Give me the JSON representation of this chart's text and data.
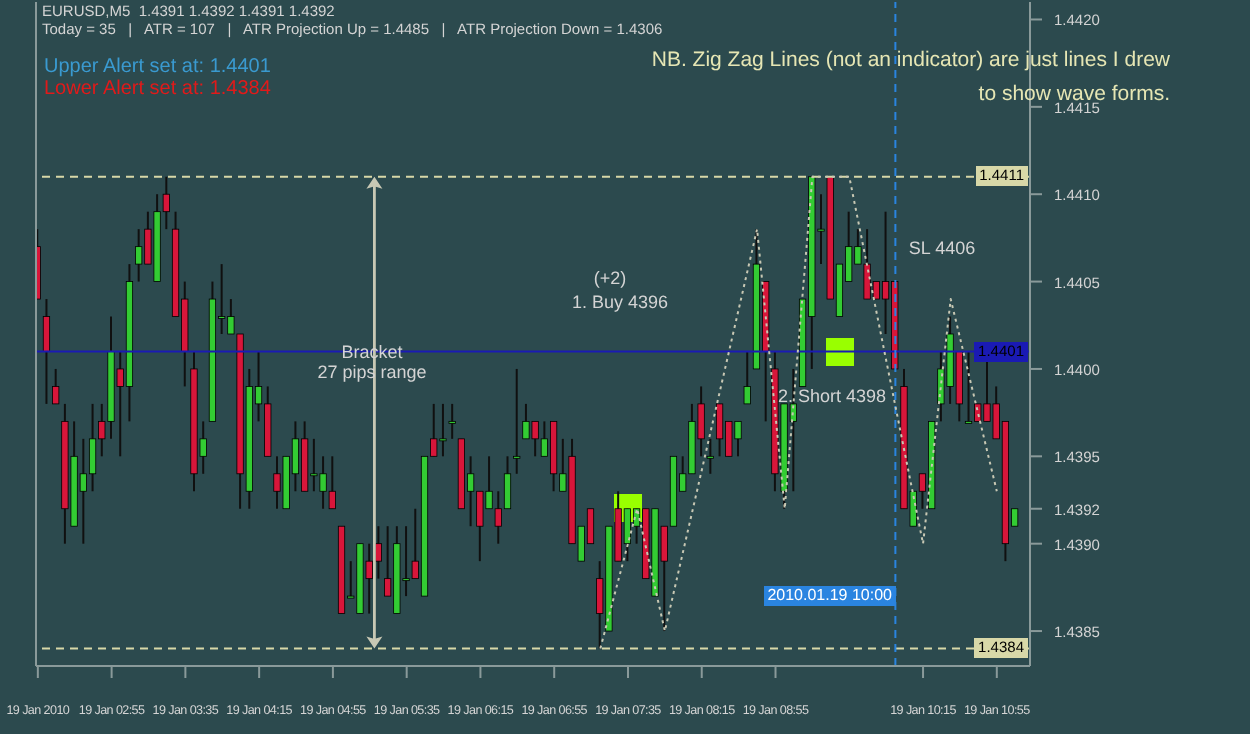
{
  "chart_data": {
    "type": "candlestick",
    "title": "EURUSD,M5  1.4391 1.4392 1.4391 1.4392",
    "subtitle": "Today = 35   |   ATR = 107   |   ATR Projection Up = 1.4485   |   ATR Projection Down = 1.4306",
    "annotations": [
      "NB. Zig Zag Lines (not an indicator) are just lines I drew to show wave forms.",
      "Upper Alert set at: 1.4401",
      "Lower Alert set at: 1.4384",
      "Bracket",
      "27 pips range",
      "(+2)",
      "1. Buy  4396",
      "2. Short 4398",
      "SL 4406"
    ],
    "x": [
      "2010-01-19T02:15",
      "2010-01-19T02:20",
      "2010-01-19T02:25",
      "2010-01-19T02:30",
      "2010-01-19T02:35",
      "2010-01-19T02:40",
      "2010-01-19T02:45",
      "2010-01-19T02:50",
      "2010-01-19T02:55",
      "2010-01-19T03:00",
      "2010-01-19T03:05",
      "2010-01-19T03:10",
      "2010-01-19T03:15",
      "2010-01-19T03:20",
      "2010-01-19T03:25",
      "2010-01-19T03:30",
      "2010-01-19T03:35",
      "2010-01-19T03:40",
      "2010-01-19T03:45",
      "2010-01-19T03:50",
      "2010-01-19T03:55",
      "2010-01-19T04:00",
      "2010-01-19T04:05",
      "2010-01-19T04:10",
      "2010-01-19T04:15",
      "2010-01-19T04:20",
      "2010-01-19T04:25",
      "2010-01-19T04:30",
      "2010-01-19T04:35",
      "2010-01-19T04:40",
      "2010-01-19T04:45",
      "2010-01-19T04:50",
      "2010-01-19T04:55",
      "2010-01-19T05:00",
      "2010-01-19T05:05",
      "2010-01-19T05:10",
      "2010-01-19T05:15",
      "2010-01-19T05:20",
      "2010-01-19T05:25",
      "2010-01-19T05:30",
      "2010-01-19T05:35",
      "2010-01-19T05:40",
      "2010-01-19T05:45",
      "2010-01-19T05:50",
      "2010-01-19T05:55",
      "2010-01-19T06:00",
      "2010-01-19T06:05",
      "2010-01-19T06:10",
      "2010-01-19T06:15",
      "2010-01-19T06:20",
      "2010-01-19T06:25",
      "2010-01-19T06:30",
      "2010-01-19T06:35",
      "2010-01-19T06:40",
      "2010-01-19T06:45",
      "2010-01-19T06:50",
      "2010-01-19T06:55",
      "2010-01-19T07:00",
      "2010-01-19T07:05",
      "2010-01-19T07:10",
      "2010-01-19T07:15",
      "2010-01-19T07:20",
      "2010-01-19T07:25",
      "2010-01-19T07:30",
      "2010-01-19T07:35",
      "2010-01-19T07:40",
      "2010-01-19T07:45",
      "2010-01-19T07:50",
      "2010-01-19T07:55",
      "2010-01-19T08:00",
      "2010-01-19T08:05",
      "2010-01-19T08:10",
      "2010-01-19T08:15",
      "2010-01-19T08:20",
      "2010-01-19T08:25",
      "2010-01-19T08:30",
      "2010-01-19T08:35",
      "2010-01-19T08:40",
      "2010-01-19T08:45",
      "2010-01-19T08:50",
      "2010-01-19T08:55",
      "2010-01-19T09:00",
      "2010-01-19T09:05",
      "2010-01-19T09:10",
      "2010-01-19T09:15",
      "2010-01-19T09:20",
      "2010-01-19T09:25",
      "2010-01-19T09:30",
      "2010-01-19T09:35",
      "2010-01-19T09:40",
      "2010-01-19T09:45",
      "2010-01-19T09:50",
      "2010-01-19T09:55",
      "2010-01-19T10:00",
      "2010-01-19T10:05",
      "2010-01-19T10:10",
      "2010-01-19T10:15",
      "2010-01-19T10:20",
      "2010-01-19T10:25",
      "2010-01-19T10:30",
      "2010-01-19T10:35",
      "2010-01-19T10:40",
      "2010-01-19T10:45",
      "2010-01-19T10:50",
      "2010-01-19T10:55",
      "2010-01-19T11:00",
      "2010-01-19T11:05"
    ],
    "ohlc": [
      [
        1.4407,
        1.4408,
        1.4404,
        1.4404
      ],
      [
        1.4403,
        1.4404,
        1.4398,
        1.4401
      ],
      [
        1.4399,
        1.44,
        1.4398,
        1.4398
      ],
      [
        1.4397,
        1.4398,
        1.439,
        1.4392
      ],
      [
        1.4391,
        1.4397,
        1.4391,
        1.4395
      ],
      [
        1.4393,
        1.4396,
        1.439,
        1.4394
      ],
      [
        1.4394,
        1.4398,
        1.4393,
        1.4396
      ],
      [
        1.4397,
        1.4398,
        1.4395,
        1.4396
      ],
      [
        1.4397,
        1.4403,
        1.4396,
        1.4401
      ],
      [
        1.44,
        1.4401,
        1.4395,
        1.4399
      ],
      [
        1.4399,
        1.4406,
        1.4397,
        1.4405
      ],
      [
        1.4406,
        1.4408,
        1.4405,
        1.4407
      ],
      [
        1.4408,
        1.4409,
        1.4406,
        1.4406
      ],
      [
        1.4405,
        1.441,
        1.4405,
        1.4409
      ],
      [
        1.441,
        1.4411,
        1.4408,
        1.4409
      ],
      [
        1.4408,
        1.4409,
        1.4403,
        1.4403
      ],
      [
        1.4404,
        1.4405,
        1.4399,
        1.4401
      ],
      [
        1.44,
        1.4401,
        1.4393,
        1.4394
      ],
      [
        1.4395,
        1.4397,
        1.4394,
        1.4396
      ],
      [
        1.4397,
        1.4405,
        1.4397,
        1.4404
      ],
      [
        1.4403,
        1.4406,
        1.4402,
        1.4403
      ],
      [
        1.4402,
        1.4404,
        1.4402,
        1.4403
      ],
      [
        1.4402,
        1.4402,
        1.4392,
        1.4394
      ],
      [
        1.4393,
        1.44,
        1.4392,
        1.4399
      ],
      [
        1.4398,
        1.4401,
        1.4397,
        1.4399
      ],
      [
        1.4398,
        1.4399,
        1.4395,
        1.4395
      ],
      [
        1.4394,
        1.4395,
        1.4392,
        1.4393
      ],
      [
        1.4392,
        1.4395,
        1.4392,
        1.4395
      ],
      [
        1.4394,
        1.4397,
        1.4393,
        1.4396
      ],
      [
        1.4396,
        1.4397,
        1.4393,
        1.4393
      ],
      [
        1.4394,
        1.4396,
        1.4393,
        1.4394
      ],
      [
        1.4393,
        1.4395,
        1.4392,
        1.4394
      ],
      [
        1.4393,
        1.4395,
        1.4392,
        1.4392
      ],
      [
        1.4391,
        1.4391,
        1.4386,
        1.4386
      ],
      [
        1.4387,
        1.4389,
        1.4387,
        1.4387
      ],
      [
        1.4386,
        1.439,
        1.4386,
        1.439
      ],
      [
        1.4389,
        1.439,
        1.4386,
        1.4388
      ],
      [
        1.439,
        1.4391,
        1.4388,
        1.4389
      ],
      [
        1.4388,
        1.4391,
        1.4387,
        1.4387
      ],
      [
        1.4386,
        1.4391,
        1.4386,
        1.439
      ],
      [
        1.4388,
        1.4391,
        1.4387,
        1.4388
      ],
      [
        1.4389,
        1.4392,
        1.4388,
        1.4388
      ],
      [
        1.4387,
        1.4395,
        1.4387,
        1.4395
      ],
      [
        1.4396,
        1.4398,
        1.4395,
        1.4395
      ],
      [
        1.4396,
        1.4398,
        1.4395,
        1.4396
      ],
      [
        1.4397,
        1.4398,
        1.4396,
        1.4397
      ],
      [
        1.4396,
        1.4396,
        1.4392,
        1.4392
      ],
      [
        1.4393,
        1.4395,
        1.4391,
        1.4394
      ],
      [
        1.4393,
        1.4393,
        1.4389,
        1.4391
      ],
      [
        1.4392,
        1.4395,
        1.4392,
        1.4393
      ],
      [
        1.4392,
        1.4393,
        1.439,
        1.4391
      ],
      [
        1.4392,
        1.4395,
        1.4392,
        1.4394
      ],
      [
        1.4395,
        1.44,
        1.4394,
        1.4395
      ],
      [
        1.4396,
        1.4398,
        1.4396,
        1.4397
      ],
      [
        1.4397,
        1.4397,
        1.4395,
        1.4396
      ],
      [
        1.4395,
        1.4397,
        1.4395,
        1.4396
      ],
      [
        1.4397,
        1.4397,
        1.4393,
        1.4394
      ],
      [
        1.4393,
        1.4396,
        1.4393,
        1.4394
      ],
      [
        1.4395,
        1.4396,
        1.439,
        1.439
      ],
      [
        1.4389,
        1.4391,
        1.4389,
        1.4391
      ],
      [
        1.4392,
        1.4392,
        1.439,
        1.439
      ],
      [
        1.4388,
        1.4389,
        1.4384,
        1.4386
      ],
      [
        1.4385,
        1.4391,
        1.4385,
        1.4391
      ],
      [
        1.4392,
        1.4393,
        1.4389,
        1.4389
      ],
      [
        1.439,
        1.4392,
        1.4389,
        1.4392
      ],
      [
        1.4391,
        1.4392,
        1.439,
        1.4392
      ],
      [
        1.4392,
        1.4392,
        1.4388,
        1.4388
      ],
      [
        1.4387,
        1.4392,
        1.4387,
        1.4392
      ],
      [
        1.4391,
        1.4391,
        1.4385,
        1.4389
      ],
      [
        1.4391,
        1.4395,
        1.4391,
        1.4395
      ],
      [
        1.4393,
        1.4395,
        1.4393,
        1.4394
      ],
      [
        1.4394,
        1.4398,
        1.4394,
        1.4397
      ],
      [
        1.4398,
        1.4399,
        1.4395,
        1.4396
      ],
      [
        1.4395,
        1.4396,
        1.4394,
        1.4395
      ],
      [
        1.4398,
        1.4398,
        1.4395,
        1.4396
      ],
      [
        1.4397,
        1.4397,
        1.4395,
        1.4395
      ],
      [
        1.4396,
        1.4397,
        1.4395,
        1.4397
      ],
      [
        1.4398,
        1.4401,
        1.4398,
        1.4399
      ],
      [
        1.44,
        1.4408,
        1.44,
        1.4406
      ],
      [
        1.4405,
        1.4405,
        1.4397,
        1.4401
      ],
      [
        1.44,
        1.4401,
        1.4393,
        1.4394
      ],
      [
        1.4393,
        1.4398,
        1.4392,
        1.4398
      ],
      [
        1.4397,
        1.44,
        1.4393,
        1.4398
      ],
      [
        1.4399,
        1.4404,
        1.4399,
        1.4404
      ],
      [
        1.4403,
        1.4411,
        1.44,
        1.4411
      ],
      [
        1.4408,
        1.441,
        1.4406,
        1.4408
      ],
      [
        1.4411,
        1.4411,
        1.4404,
        1.4404
      ],
      [
        1.4403,
        1.4406,
        1.4403,
        1.4406
      ],
      [
        1.4405,
        1.4409,
        1.4405,
        1.4407
      ],
      [
        1.4406,
        1.4408,
        1.4406,
        1.4407
      ],
      [
        1.4406,
        1.4408,
        1.4404,
        1.4404
      ],
      [
        1.4405,
        1.4405,
        1.4404,
        1.4404
      ],
      [
        1.4405,
        1.4409,
        1.4402,
        1.4404
      ],
      [
        1.4405,
        1.4405,
        1.44,
        1.44
      ],
      [
        1.4399,
        1.44,
        1.4392,
        1.4392
      ],
      [
        1.4391,
        1.4393,
        1.4391,
        1.4393
      ],
      [
        1.4394,
        1.4394,
        1.4392,
        1.4393
      ],
      [
        1.4392,
        1.4397,
        1.4392,
        1.4397
      ],
      [
        1.4398,
        1.4401,
        1.4397,
        1.44
      ],
      [
        1.4399,
        1.4403,
        1.4398,
        1.4402
      ],
      [
        1.4401,
        1.4401,
        1.4397,
        1.4398
      ],
      [
        1.4397,
        1.4401,
        1.4397,
        1.4397
      ],
      [
        1.4398,
        1.4398,
        1.4397,
        1.4397
      ],
      [
        1.4398,
        1.4401,
        1.4397,
        1.4397
      ],
      [
        1.4398,
        1.4399,
        1.4396,
        1.4396
      ],
      [
        1.4397,
        1.4397,
        1.4389,
        1.439
      ],
      [
        1.4391,
        1.4392,
        1.4391,
        1.4392
      ]
    ],
    "series": [
      {
        "type": "line",
        "color": "#c8c8b4",
        "line_style": "dotted",
        "x": [
          "2010-01-19T07:20",
          "2010-01-19T07:40",
          "2010-01-19T07:55",
          "2010-01-19T08:45",
          "2010-01-19T09:00",
          "2010-01-19T09:15",
          "2010-01-19T09:35",
          "2010-01-19T10:15",
          "2010-01-19T10:30",
          "2010-01-19T10:55"
        ],
        "values": [
          1.4384,
          1.4392,
          1.4385,
          1.4408,
          1.4392,
          1.4411,
          1.4411,
          1.439,
          1.4404,
          1.4393
        ]
      }
    ],
    "xlim": [
      "2010-01-19T02:14",
      "2010-01-19T11:13"
    ],
    "xticks": [
      {
        "value": "2010-01-19T02:15",
        "label": "19 Jan 2010"
      },
      {
        "value": "2010-01-19T02:55",
        "label": "19 Jan 02:55"
      },
      {
        "value": "2010-01-19T03:35",
        "label": "19 Jan 03:35"
      },
      {
        "value": "2010-01-19T04:15",
        "label": "19 Jan 04:15"
      },
      {
        "value": "2010-01-19T04:55",
        "label": "19 Jan 04:55"
      },
      {
        "value": "2010-01-19T05:35",
        "label": "19 Jan 05:35"
      },
      {
        "value": "2010-01-19T06:15",
        "label": "19 Jan 06:15"
      },
      {
        "value": "2010-01-19T06:55",
        "label": "19 Jan 06:55"
      },
      {
        "value": "2010-01-19T07:35",
        "label": "19 Jan 07:35"
      },
      {
        "value": "2010-01-19T08:15",
        "label": "19 Jan 08:15"
      },
      {
        "value": "2010-01-19T08:55",
        "label": "19 Jan 08:55"
      },
      {
        "value": "2010-01-19T10:15",
        "label": "19 Jan 10:15"
      },
      {
        "value": "2010-01-19T10:55",
        "label": "19 Jan 10:55"
      }
    ],
    "ylim": [
      1.4383,
      1.4421
    ],
    "yticks": [
      {
        "value": 1.4385,
        "label": "1.4385"
      },
      {
        "value": 1.439,
        "label": "1.4390"
      },
      {
        "value": 1.4392,
        "label": "1.4392"
      },
      {
        "value": 1.4395,
        "label": "1.4395"
      },
      {
        "value": 1.44,
        "label": "1.4400"
      },
      {
        "value": 1.4405,
        "label": "1.4405"
      },
      {
        "value": 1.441,
        "label": "1.4410"
      },
      {
        "value": 1.4415,
        "label": "1.4415"
      },
      {
        "value": 1.442,
        "label": "1.4420"
      }
    ],
    "ref_lines": [
      {
        "axis": "y",
        "value": 1.4411,
        "label": "1.4411",
        "color": "#d8d8a8",
        "line_style": "dashed"
      },
      {
        "axis": "y",
        "value": 1.4401,
        "label": "1.4401",
        "color": "#1a1ab4",
        "line_style": "solid"
      },
      {
        "axis": "y",
        "value": 1.4384,
        "label": "1.4384",
        "color": "#d8d8a8",
        "line_style": "dashed"
      },
      {
        "axis": "x",
        "value": "2010-01-19T10:00",
        "label": "2010.01.19 10:00",
        "color": "#2a84e0",
        "line_style": "dashed"
      }
    ]
  }
}
